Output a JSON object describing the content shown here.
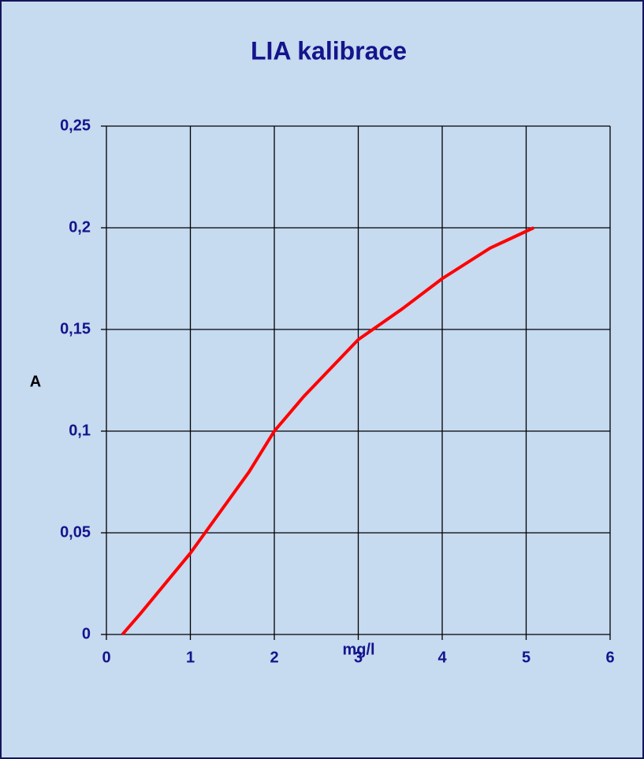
{
  "chart_data": {
    "type": "line",
    "title": "LIA kalibrace",
    "x_label": "mg/l",
    "y_label": "A",
    "x": [
      0.19,
      0.4,
      1,
      1.7,
      2,
      2.35,
      3,
      3.52,
      4,
      4.57,
      5.09
    ],
    "series": [
      {
        "name": "A",
        "color": "#ff0000",
        "values": [
          0,
          0.01,
          0.04,
          0.08,
          0.1,
          0.117,
          0.145,
          0.16,
          0.175,
          0.19,
          0.2
        ]
      }
    ],
    "xlim": [
      0,
      6
    ],
    "xticks": [
      0,
      1,
      2,
      3,
      4,
      5,
      6
    ],
    "ylim": [
      0,
      0.25
    ],
    "yticks": [
      0,
      {
        "value": 0.05,
        "label": "0,05"
      },
      {
        "value": 0.1,
        "label": "0,1"
      },
      {
        "value": 0.15,
        "label": "0,15"
      },
      {
        "value": 0.2,
        "label": "0,2"
      },
      {
        "value": 0.25,
        "label": "0,25"
      }
    ],
    "grid": true
  }
}
